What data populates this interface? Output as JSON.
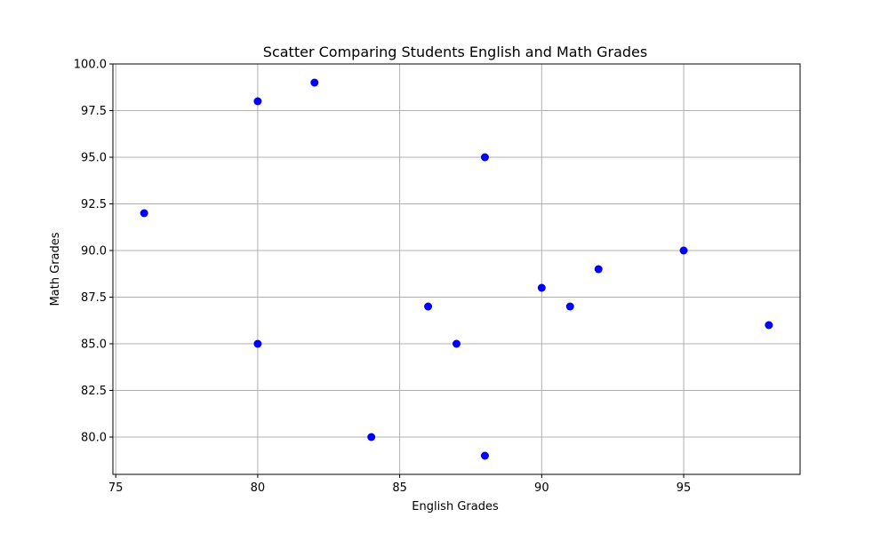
{
  "chart_data": {
    "type": "scatter",
    "title": "Scatter Comparing Students English and Math Grades",
    "xlabel": "English Grades",
    "ylabel": "Math Grades",
    "xlim": [
      74.9,
      99.1
    ],
    "ylim": [
      78.0,
      100.0
    ],
    "xticks": [
      "75",
      "80",
      "85",
      "90",
      "95"
    ],
    "xtick_values": [
      75,
      80,
      85,
      90,
      95
    ],
    "yticks": [
      "80.0",
      "82.5",
      "85.0",
      "87.5",
      "90.0",
      "92.5",
      "95.0",
      "97.5",
      "100.0"
    ],
    "ytick_values": [
      80.0,
      82.5,
      85.0,
      87.5,
      90.0,
      92.5,
      95.0,
      97.5,
      100.0
    ],
    "grid": true,
    "marker_color": "#0000ff",
    "points": [
      {
        "x": 76,
        "y": 92
      },
      {
        "x": 80,
        "y": 98
      },
      {
        "x": 80,
        "y": 85
      },
      {
        "x": 82,
        "y": 99
      },
      {
        "x": 84,
        "y": 80
      },
      {
        "x": 86,
        "y": 87
      },
      {
        "x": 87,
        "y": 85
      },
      {
        "x": 88,
        "y": 95
      },
      {
        "x": 88,
        "y": 79
      },
      {
        "x": 90,
        "y": 88
      },
      {
        "x": 91,
        "y": 87
      },
      {
        "x": 92,
        "y": 89
      },
      {
        "x": 95,
        "y": 90
      },
      {
        "x": 98,
        "y": 86
      }
    ]
  }
}
